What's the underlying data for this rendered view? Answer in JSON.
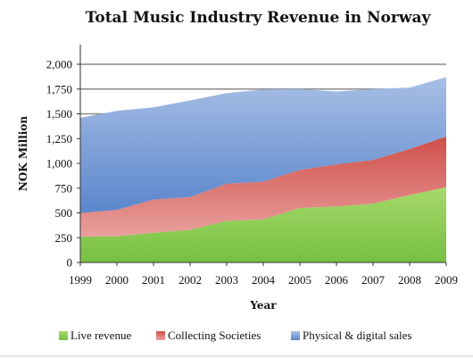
{
  "chart_data": {
    "type": "area",
    "stacked": true,
    "title": "Total Music Industry Revenue in Norway",
    "xlabel": "Year",
    "ylabel": "NOK Million",
    "x": [
      "1999",
      "2000",
      "2001",
      "2002",
      "2003",
      "2004",
      "2005",
      "2006",
      "2007",
      "2008",
      "2009"
    ],
    "ylim": [
      0,
      2000
    ],
    "yticks": [
      0,
      250,
      500,
      750,
      1000,
      1250,
      1500,
      1750,
      2000
    ],
    "ytick_labels": [
      "0",
      "250",
      "500",
      "750",
      "1,000",
      "1,250",
      "1,500",
      "1,750",
      "2,000"
    ],
    "grid": "horizontal",
    "legend_position": "bottom",
    "series": [
      {
        "name": "Live revenue",
        "color_top": "#a6d96a",
        "color_bottom": "#77c043",
        "values": [
          260,
          265,
          300,
          330,
          420,
          435,
          550,
          565,
          595,
          680,
          760
        ]
      },
      {
        "name": "Collecting Societies",
        "color_top": "#cf4f4a",
        "color_bottom": "#e9a09c",
        "values": [
          240,
          265,
          335,
          330,
          375,
          380,
          385,
          425,
          440,
          465,
          510
        ]
      },
      {
        "name": "Physical & digital sales",
        "color_top": "#a8bfe6",
        "color_bottom": "#5a86cc",
        "values": [
          960,
          1000,
          930,
          975,
          915,
          930,
          815,
          735,
          715,
          620,
          600
        ]
      }
    ]
  }
}
